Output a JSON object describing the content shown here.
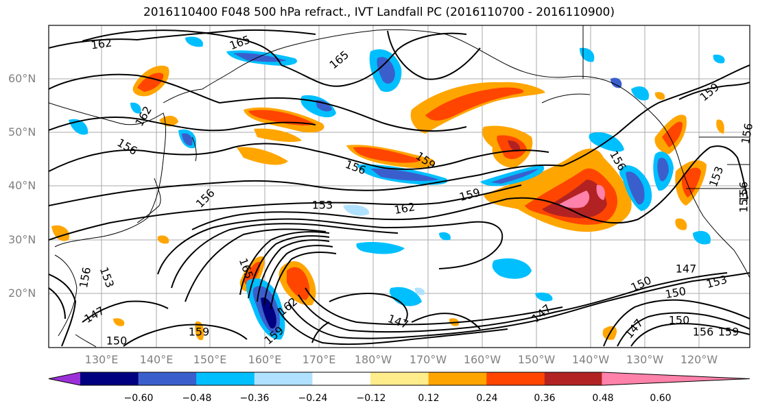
{
  "title": "2016110400 F048 500 hPa refract., IVT Landfall PC (2016110700 - 2016110900)",
  "lat_labels": [
    "60°N",
    "50°N",
    "40°N",
    "30°N",
    "20°N"
  ],
  "lon_labels": [
    "130°E",
    "140°E",
    "150°E",
    "160°E",
    "170°E",
    "180°W",
    "170°W",
    "160°W",
    "150°W",
    "140°W",
    "130°W",
    "120°W"
  ],
  "colorbar": {
    "ticks": [
      "−0.60",
      "−0.48",
      "−0.36",
      "−0.24",
      "−0.12",
      "0.12",
      "0.24",
      "0.36",
      "0.48",
      "0.60"
    ],
    "colors": [
      "#9b30d8",
      "#000080",
      "#3a5fcd",
      "#00bfff",
      "#b0e2ff",
      "#ffffff",
      "#ffec8b",
      "#ffa500",
      "#ff4500",
      "#b22222",
      "#ff82ab"
    ]
  },
  "contour_labels": [
    "162",
    "165",
    "165",
    "162",
    "156",
    "159",
    "156",
    "153",
    "156",
    "153",
    "162",
    "159",
    "156",
    "159",
    "153",
    "156",
    "156",
    "153",
    "147",
    "150",
    "159",
    "165",
    "162",
    "159",
    "147",
    "147",
    "150",
    "150",
    "153",
    "147",
    "150",
    "156",
    "159",
    "147",
    "156"
  ]
}
